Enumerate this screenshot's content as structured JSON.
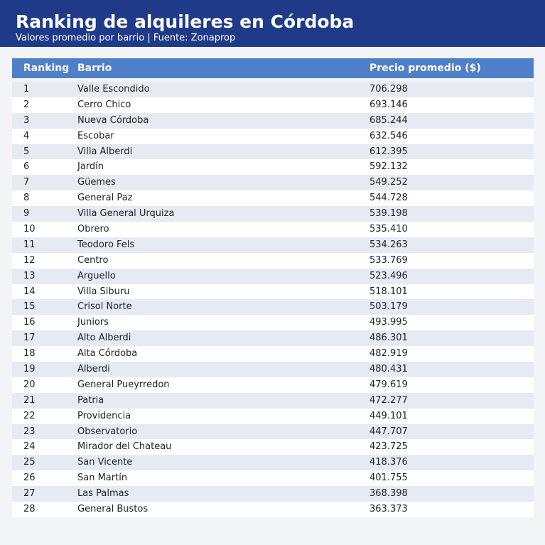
{
  "header": {
    "title": "Ranking de alquileres en Córdoba",
    "subtitle": "Valores promedio por barrio | Fuente: Zonaprop"
  },
  "table": {
    "columns": [
      "Ranking",
      "Barrio",
      "Precio promedio ($)"
    ],
    "rows": [
      [
        1,
        "Valle Escondido",
        "706.298"
      ],
      [
        2,
        "Cerro Chico",
        "693.146"
      ],
      [
        3,
        "Nueva Córdoba",
        "685.244"
      ],
      [
        4,
        "Escobar",
        "632.546"
      ],
      [
        5,
        "Villa Alberdi",
        "612.395"
      ],
      [
        6,
        "Jardín",
        "592.132"
      ],
      [
        7,
        "Güemes",
        "549.252"
      ],
      [
        8,
        "General Paz",
        "544.728"
      ],
      [
        9,
        "Villa General Urquiza",
        "539.198"
      ],
      [
        10,
        "Obrero",
        "535.410"
      ],
      [
        11,
        "Teodoro Fels",
        "534.263"
      ],
      [
        12,
        "Centro",
        "533.769"
      ],
      [
        13,
        "Arguello",
        "523.496"
      ],
      [
        14,
        "Villa Siburu",
        "518.101"
      ],
      [
        15,
        "Crisol Norte",
        "503.179"
      ],
      [
        16,
        "Juniors",
        "493.995"
      ],
      [
        17,
        "Alto Alberdi",
        "486.301"
      ],
      [
        18,
        "Alta Córdoba",
        "482.919"
      ],
      [
        19,
        "Alberdi",
        "480.431"
      ],
      [
        20,
        "General Pueyrredon",
        "479.619"
      ],
      [
        21,
        "Patria",
        "472.277"
      ],
      [
        22,
        "Providencia",
        "449.101"
      ],
      [
        23,
        "Observatorio",
        "447.707"
      ],
      [
        24,
        "Mirador del Chateau",
        "423.725"
      ],
      [
        25,
        "San Vicente",
        "418.376"
      ],
      [
        26,
        "San Martín",
        "401.755"
      ],
      [
        27,
        "Las Palmas",
        "368.398"
      ],
      [
        28,
        "General Bustos",
        "363.373"
      ]
    ]
  }
}
